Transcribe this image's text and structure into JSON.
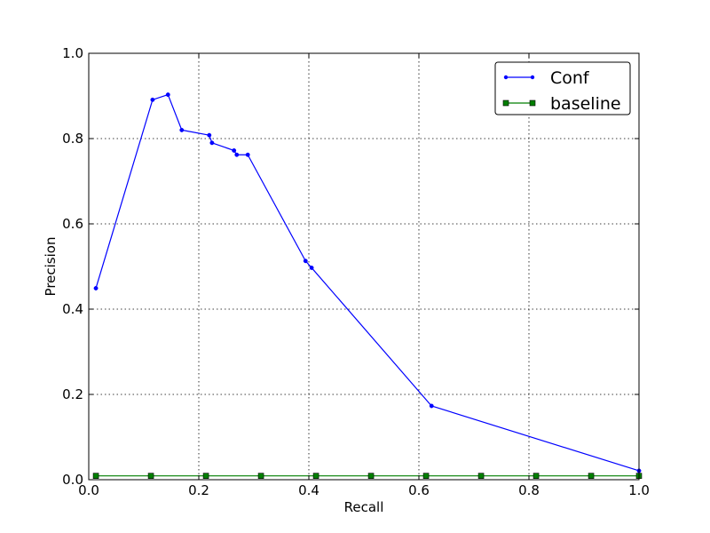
{
  "chart_data": {
    "type": "line",
    "title": "",
    "xlabel": "Recall",
    "ylabel": "Precision",
    "xlim": [
      0.0,
      1.0
    ],
    "ylim": [
      0.0,
      1.0
    ],
    "xticks": [
      "0.0",
      "0.2",
      "0.4",
      "0.6",
      "0.8",
      "1.0"
    ],
    "yticks": [
      "0.0",
      "0.2",
      "0.4",
      "0.6",
      "0.8",
      "1.0"
    ],
    "grid": true,
    "legend_position": "top-right",
    "series": [
      {
        "name": "Conf",
        "color": "#0000ff",
        "marker": "point",
        "x": [
          0.013,
          0.116,
          0.144,
          0.169,
          0.219,
          0.224,
          0.264,
          0.269,
          0.289,
          0.394,
          0.405,
          0.623,
          1.0
        ],
        "y": [
          0.449,
          0.891,
          0.903,
          0.82,
          0.808,
          0.79,
          0.772,
          0.762,
          0.762,
          0.513,
          0.497,
          0.173,
          0.021
        ]
      },
      {
        "name": "baseline",
        "color": "#007f00",
        "marker": "square",
        "x": [
          0.013,
          0.113,
          0.213,
          0.313,
          0.413,
          0.513,
          0.613,
          0.713,
          0.813,
          0.913,
          1.0
        ],
        "y": [
          0.009,
          0.009,
          0.009,
          0.009,
          0.009,
          0.009,
          0.009,
          0.009,
          0.009,
          0.009,
          0.009
        ]
      }
    ]
  }
}
